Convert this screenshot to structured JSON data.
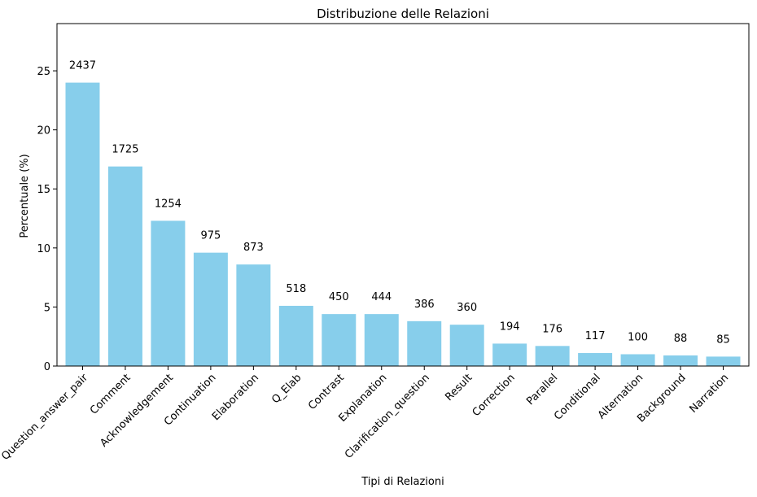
{
  "chart_data": {
    "type": "bar",
    "title": "Distribuzione delle Relazioni",
    "xlabel": "Tipi di Relazioni",
    "ylabel": "Percentuale (%)",
    "ylim": [
      0,
      29
    ],
    "yticks": [
      0,
      5,
      10,
      15,
      20,
      25
    ],
    "grid": false,
    "bar_color": "#87ceeb",
    "categories": [
      "Question_answer_pair",
      "Comment",
      "Acknowledgement",
      "Continuation",
      "Elaboration",
      "Q_Elab",
      "Contrast",
      "Explanation",
      "Clarification_question",
      "Result",
      "Correction",
      "Parallel",
      "Conditional",
      "Alternation",
      "Background",
      "Narration"
    ],
    "values": [
      24.0,
      16.9,
      12.3,
      9.6,
      8.6,
      5.1,
      4.4,
      4.4,
      3.8,
      3.5,
      1.9,
      1.7,
      1.1,
      1.0,
      0.9,
      0.8
    ],
    "labels": [
      "2437",
      "1725",
      "1254",
      "975",
      "873",
      "518",
      "450",
      "444",
      "386",
      "360",
      "194",
      "176",
      "117",
      "100",
      "88",
      "85"
    ]
  }
}
